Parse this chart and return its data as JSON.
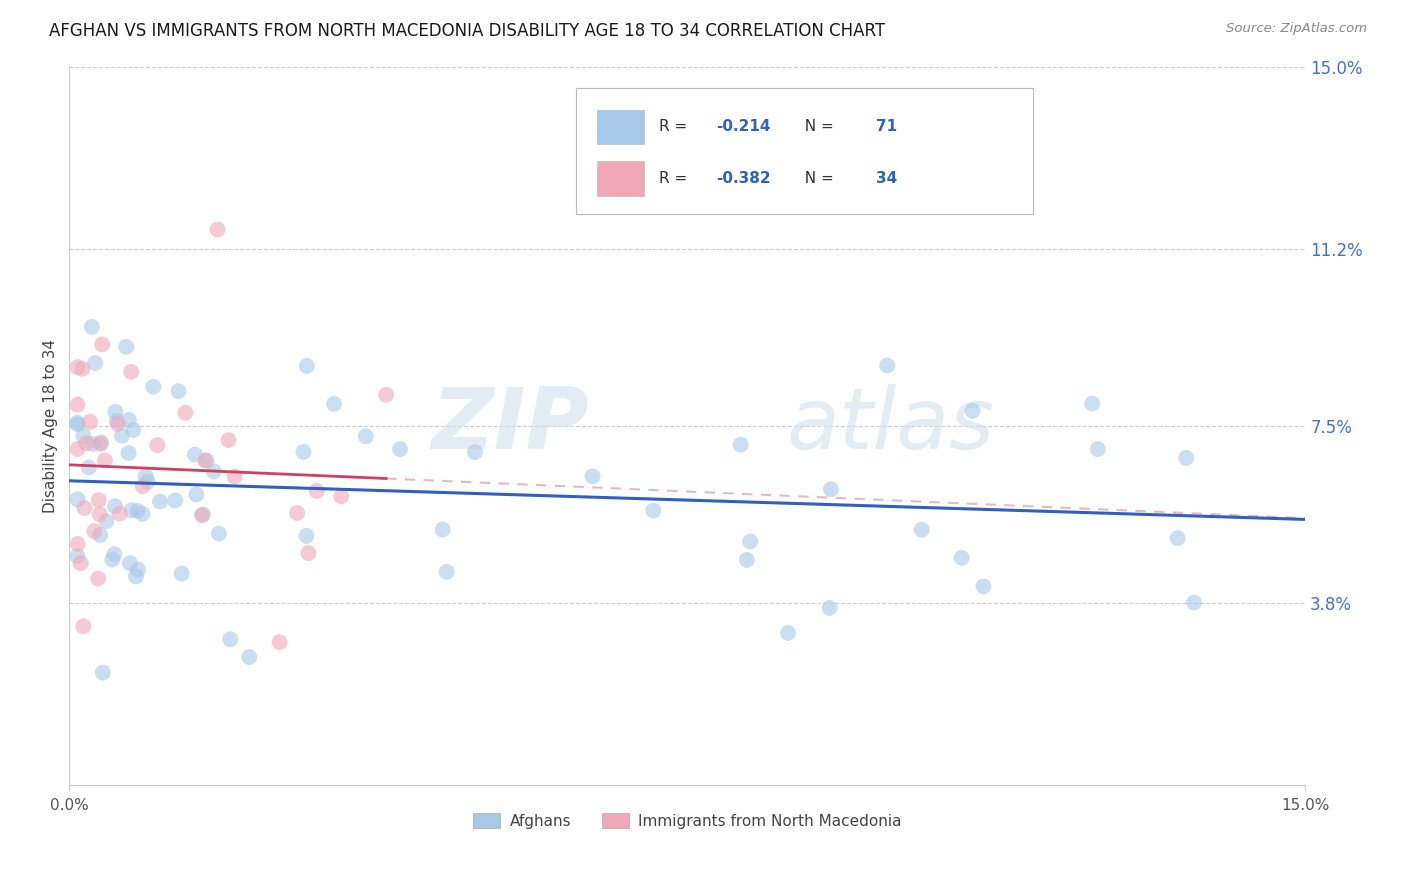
{
  "title": "AFGHAN VS IMMIGRANTS FROM NORTH MACEDONIA DISABILITY AGE 18 TO 34 CORRELATION CHART",
  "source": "Source: ZipAtlas.com",
  "ylabel": "Disability Age 18 to 34",
  "xlim": [
    0.0,
    0.15
  ],
  "ylim": [
    0.0,
    0.15
  ],
  "ytick_labels_right": [
    "15.0%",
    "11.2%",
    "7.5%",
    "3.8%"
  ],
  "ytick_values_right": [
    0.15,
    0.112,
    0.075,
    0.038
  ],
  "grid_color": "#d0d0d0",
  "background_color": "#ffffff",
  "watermark_zip": "ZIP",
  "watermark_atlas": "atlas",
  "afghan_scatter_color": "#a8c8e8",
  "macedonian_scatter_color": "#f0a8b8",
  "afghan_line_color": "#3060c0",
  "macedonian_line_color": "#d04060",
  "macedonian_line_dashed_color": "#e8b8c8",
  "legend_box_color": "#f8f8f8",
  "legend_border_color": "#cccccc",
  "legend_text_color": "#333333",
  "legend_value_color": "#3060c0",
  "afghan_R": -0.214,
  "afghan_N": 71,
  "macedonian_R": -0.382,
  "macedonian_N": 34,
  "bottom_legend_afghan": "Afghans",
  "bottom_legend_mac": "Immigrants from North Macedonia"
}
